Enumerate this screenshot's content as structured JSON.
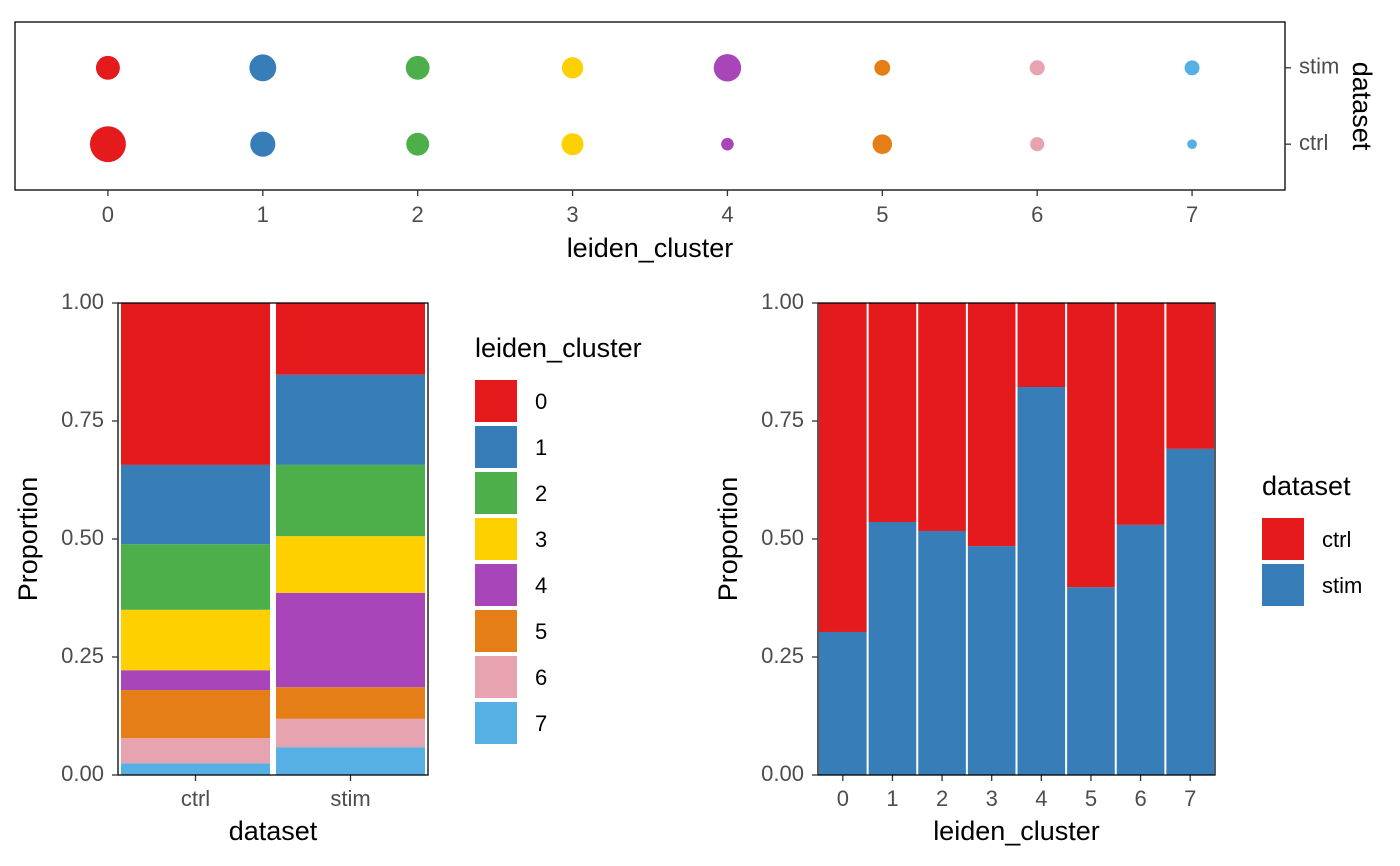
{
  "chart_data": [
    {
      "type": "dot",
      "xlabel": "leiden_cluster",
      "ylabel": "dataset",
      "categories": [
        "0",
        "1",
        "2",
        "3",
        "4",
        "5",
        "6",
        "7"
      ],
      "colors": [
        "#e41a1c",
        "#377eb8",
        "#4daf4a",
        "#ffd000",
        "#a845b8",
        "#e67e17",
        "#e8a3b1",
        "#56b0e4"
      ],
      "series": [
        {
          "name": "ctrl",
          "values": [
            0.343,
            0.168,
            0.139,
            0.128,
            0.042,
            0.102,
            0.053,
            0.025
          ]
        },
        {
          "name": "stim",
          "values": [
            0.152,
            0.191,
            0.151,
            0.12,
            0.2,
            0.067,
            0.06,
            0.059
          ]
        }
      ]
    },
    {
      "type": "bar",
      "stacked": true,
      "xlabel": "dataset",
      "ylabel": "Proportion",
      "legend_title": "leiden_cluster",
      "categories": [
        "ctrl",
        "stim"
      ],
      "series": [
        {
          "name": "0",
          "color": "#e41a1c",
          "values": [
            0.343,
            0.152
          ]
        },
        {
          "name": "1",
          "color": "#377eb8",
          "values": [
            0.168,
            0.191
          ]
        },
        {
          "name": "2",
          "color": "#4daf4a",
          "values": [
            0.139,
            0.151
          ]
        },
        {
          "name": "3",
          "color": "#ffd000",
          "values": [
            0.128,
            0.12
          ]
        },
        {
          "name": "4",
          "color": "#a845b8",
          "values": [
            0.042,
            0.2
          ]
        },
        {
          "name": "5",
          "color": "#e67e17",
          "values": [
            0.102,
            0.067
          ]
        },
        {
          "name": "6",
          "color": "#e8a3b1",
          "values": [
            0.053,
            0.06
          ]
        },
        {
          "name": "7",
          "color": "#56b0e4",
          "values": [
            0.025,
            0.059
          ]
        }
      ],
      "ylim": [
        0,
        1
      ],
      "yticks": [
        {
          "value": 0,
          "label": "0.00"
        },
        {
          "value": 0.25,
          "label": "0.25"
        },
        {
          "value": 0.5,
          "label": "0.50"
        },
        {
          "value": 0.75,
          "label": "0.75"
        },
        {
          "value": 1,
          "label": "1.00"
        }
      ]
    },
    {
      "type": "bar",
      "stacked": true,
      "xlabel": "leiden_cluster",
      "ylabel": "Proportion",
      "legend_title": "dataset",
      "categories": [
        "0",
        "1",
        "2",
        "3",
        "4",
        "5",
        "6",
        "7"
      ],
      "series": [
        {
          "name": "ctrl",
          "color": "#e41a1c",
          "values": [
            0.697,
            0.464,
            0.483,
            0.515,
            0.178,
            0.602,
            0.47,
            0.309
          ]
        },
        {
          "name": "stim",
          "color": "#377eb8",
          "values": [
            0.303,
            0.536,
            0.517,
            0.485,
            0.822,
            0.398,
            0.53,
            0.691
          ]
        }
      ],
      "ylim": [
        0,
        1
      ],
      "yticks": [
        {
          "value": 0,
          "label": "0.00"
        },
        {
          "value": 0.25,
          "label": "0.25"
        },
        {
          "value": 0.5,
          "label": "0.50"
        },
        {
          "value": 0.75,
          "label": "0.75"
        },
        {
          "value": 1,
          "label": "1.00"
        }
      ]
    }
  ]
}
